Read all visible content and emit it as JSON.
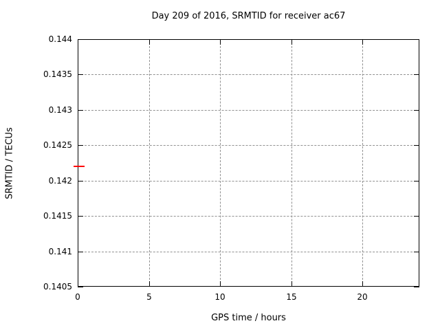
{
  "chart_data": {
    "type": "scatter",
    "title": "Day 209 of 2016, SRMTID for receiver ac67",
    "xlabel": "GPS time / hours",
    "ylabel": "SRMTID / TECUs",
    "xlim": [
      0,
      24
    ],
    "ylim": [
      0.1405,
      0.144
    ],
    "xticks": [
      0,
      5,
      10,
      15,
      20
    ],
    "xtick_labels": [
      "0",
      "5",
      "10",
      "15",
      "20"
    ],
    "yticks": [
      0.1405,
      0.141,
      0.1415,
      0.142,
      0.1425,
      0.143,
      0.1435,
      0.144
    ],
    "ytick_labels": [
      "0.1405",
      "0.141",
      "0.1415",
      "0.142",
      "0.1425",
      "0.143",
      "0.1435",
      "0.144"
    ],
    "grid": true,
    "grid_style": "dashed",
    "legend": "none",
    "series": [
      {
        "name": "SRMTID",
        "marker": "horizontal-dash",
        "color": "#ff0000",
        "points": [
          {
            "x": 0.1,
            "y": 0.1422
          }
        ]
      }
    ],
    "colors": {
      "background": "#ffffff",
      "axis": "#000000",
      "grid": "#909090",
      "text": "#000000",
      "point": "#ff0000"
    }
  }
}
